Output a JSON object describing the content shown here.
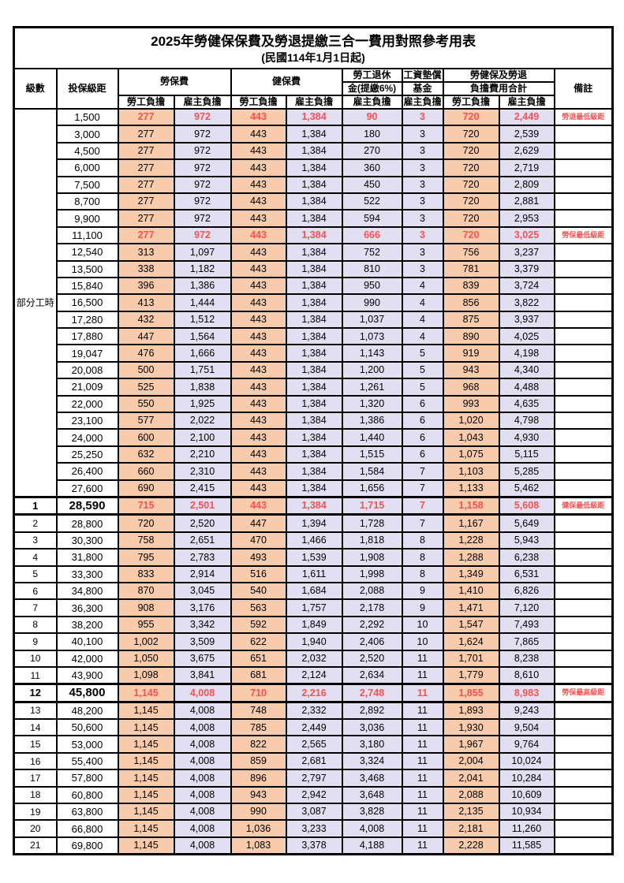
{
  "title": "2025年勞健保保費及勞退提繳三合一費用對照參考用表",
  "subtitle": "(民國114年1月1日起)",
  "colors": {
    "worker_bg": "#F8CBAD",
    "employer_bg": "#E2DFF2",
    "highlight_text": "#FA5050",
    "border": "#000000"
  },
  "header": {
    "level": "級數",
    "bracket": "投保級距",
    "labor_insurance": "勞保費",
    "health_insurance": "健保費",
    "pension_line1": "勞工退休",
    "pension_line2": "金(提繳6%)",
    "wage_fund_line1": "工資墊償",
    "wage_fund_line2": "基金",
    "total_line1": "勞健保及勞退",
    "total_line2": "負擔費用合計",
    "remark": "備註",
    "worker": "勞工負擔",
    "employer": "雇主負擔"
  },
  "table": {
    "part_time_label": "部分工時",
    "row_fields": [
      "level",
      "bracket",
      "labor_fee_worker",
      "labor_fee_employer",
      "health_fee_worker",
      "health_fee_employer",
      "pension_employer",
      "wage_fund_employer",
      "total_worker",
      "total_employer",
      "remark",
      "is_highlight",
      "is_emphasis"
    ],
    "rows": [
      [
        "",
        "1,500",
        "277",
        "972",
        "443",
        "1,384",
        "90",
        "3",
        "720",
        "2,449",
        "勞退最低級距",
        1,
        0
      ],
      [
        "",
        "3,000",
        "277",
        "972",
        "443",
        "1,384",
        "180",
        "3",
        "720",
        "2,539",
        "",
        0,
        0
      ],
      [
        "",
        "4,500",
        "277",
        "972",
        "443",
        "1,384",
        "270",
        "3",
        "720",
        "2,629",
        "",
        0,
        0
      ],
      [
        "",
        "6,000",
        "277",
        "972",
        "443",
        "1,384",
        "360",
        "3",
        "720",
        "2,719",
        "",
        0,
        0
      ],
      [
        "",
        "7,500",
        "277",
        "972",
        "443",
        "1,384",
        "450",
        "3",
        "720",
        "2,809",
        "",
        0,
        0
      ],
      [
        "",
        "8,700",
        "277",
        "972",
        "443",
        "1,384",
        "522",
        "3",
        "720",
        "2,881",
        "",
        0,
        0
      ],
      [
        "",
        "9,900",
        "277",
        "972",
        "443",
        "1,384",
        "594",
        "3",
        "720",
        "2,953",
        "",
        0,
        0
      ],
      [
        "",
        "11,100",
        "277",
        "972",
        "443",
        "1,384",
        "666",
        "3",
        "720",
        "3,025",
        "勞保最低級距",
        1,
        0
      ],
      [
        "",
        "12,540",
        "313",
        "1,097",
        "443",
        "1,384",
        "752",
        "3",
        "756",
        "3,237",
        "",
        0,
        0
      ],
      [
        "",
        "13,500",
        "338",
        "1,182",
        "443",
        "1,384",
        "810",
        "3",
        "781",
        "3,379",
        "",
        0,
        0
      ],
      [
        "",
        "15,840",
        "396",
        "1,386",
        "443",
        "1,384",
        "950",
        "4",
        "839",
        "3,724",
        "",
        0,
        0
      ],
      [
        "",
        "16,500",
        "413",
        "1,444",
        "443",
        "1,384",
        "990",
        "4",
        "856",
        "3,822",
        "",
        0,
        0
      ],
      [
        "",
        "17,280",
        "432",
        "1,512",
        "443",
        "1,384",
        "1,037",
        "4",
        "875",
        "3,937",
        "",
        0,
        0
      ],
      [
        "",
        "17,880",
        "447",
        "1,564",
        "443",
        "1,384",
        "1,073",
        "4",
        "890",
        "4,025",
        "",
        0,
        0
      ],
      [
        "",
        "19,047",
        "476",
        "1,666",
        "443",
        "1,384",
        "1,143",
        "5",
        "919",
        "4,198",
        "",
        0,
        0
      ],
      [
        "",
        "20,008",
        "500",
        "1,751",
        "443",
        "1,384",
        "1,200",
        "5",
        "943",
        "4,340",
        "",
        0,
        0
      ],
      [
        "",
        "21,009",
        "525",
        "1,838",
        "443",
        "1,384",
        "1,261",
        "5",
        "968",
        "4,488",
        "",
        0,
        0
      ],
      [
        "",
        "22,000",
        "550",
        "1,925",
        "443",
        "1,384",
        "1,320",
        "6",
        "993",
        "4,635",
        "",
        0,
        0
      ],
      [
        "",
        "23,100",
        "577",
        "2,022",
        "443",
        "1,384",
        "1,386",
        "6",
        "1,020",
        "4,798",
        "",
        0,
        0
      ],
      [
        "",
        "24,000",
        "600",
        "2,100",
        "443",
        "1,384",
        "1,440",
        "6",
        "1,043",
        "4,930",
        "",
        0,
        0
      ],
      [
        "",
        "25,250",
        "632",
        "2,210",
        "443",
        "1,384",
        "1,515",
        "6",
        "1,075",
        "5,115",
        "",
        0,
        0
      ],
      [
        "",
        "26,400",
        "660",
        "2,310",
        "443",
        "1,384",
        "1,584",
        "7",
        "1,103",
        "5,285",
        "",
        0,
        0
      ],
      [
        "",
        "27,600",
        "690",
        "2,415",
        "443",
        "1,384",
        "1,656",
        "7",
        "1,133",
        "5,462",
        "",
        0,
        0
      ],
      [
        "1",
        "28,590",
        "715",
        "2,501",
        "443",
        "1,384",
        "1,715",
        "7",
        "1,158",
        "5,608",
        "健保最低級距",
        1,
        1
      ],
      [
        "2",
        "28,800",
        "720",
        "2,520",
        "447",
        "1,394",
        "1,728",
        "7",
        "1,167",
        "5,649",
        "",
        0,
        0
      ],
      [
        "3",
        "30,300",
        "758",
        "2,651",
        "470",
        "1,466",
        "1,818",
        "8",
        "1,228",
        "5,943",
        "",
        0,
        0
      ],
      [
        "4",
        "31,800",
        "795",
        "2,783",
        "493",
        "1,539",
        "1,908",
        "8",
        "1,288",
        "6,238",
        "",
        0,
        0
      ],
      [
        "5",
        "33,300",
        "833",
        "2,914",
        "516",
        "1,611",
        "1,998",
        "8",
        "1,349",
        "6,531",
        "",
        0,
        0
      ],
      [
        "6",
        "34,800",
        "870",
        "3,045",
        "540",
        "1,684",
        "2,088",
        "9",
        "1,410",
        "6,826",
        "",
        0,
        0
      ],
      [
        "7",
        "36,300",
        "908",
        "3,176",
        "563",
        "1,757",
        "2,178",
        "9",
        "1,471",
        "7,120",
        "",
        0,
        0
      ],
      [
        "8",
        "38,200",
        "955",
        "3,342",
        "592",
        "1,849",
        "2,292",
        "10",
        "1,547",
        "7,493",
        "",
        0,
        0
      ],
      [
        "9",
        "40,100",
        "1,002",
        "3,509",
        "622",
        "1,940",
        "2,406",
        "10",
        "1,624",
        "7,865",
        "",
        0,
        0
      ],
      [
        "10",
        "42,000",
        "1,050",
        "3,675",
        "651",
        "2,032",
        "2,520",
        "11",
        "1,701",
        "8,238",
        "",
        0,
        0
      ],
      [
        "11",
        "43,900",
        "1,098",
        "3,841",
        "681",
        "2,124",
        "2,634",
        "11",
        "1,779",
        "8,610",
        "",
        0,
        0
      ],
      [
        "12",
        "45,800",
        "1,145",
        "4,008",
        "710",
        "2,216",
        "2,748",
        "11",
        "1,855",
        "8,983",
        "勞保最高級距",
        1,
        1
      ],
      [
        "13",
        "48,200",
        "1,145",
        "4,008",
        "748",
        "2,332",
        "2,892",
        "11",
        "1,893",
        "9,243",
        "",
        0,
        0
      ],
      [
        "14",
        "50,600",
        "1,145",
        "4,008",
        "785",
        "2,449",
        "3,036",
        "11",
        "1,930",
        "9,504",
        "",
        0,
        0
      ],
      [
        "15",
        "53,000",
        "1,145",
        "4,008",
        "822",
        "2,565",
        "3,180",
        "11",
        "1,967",
        "9,764",
        "",
        0,
        0
      ],
      [
        "16",
        "55,400",
        "1,145",
        "4,008",
        "859",
        "2,681",
        "3,324",
        "11",
        "2,004",
        "10,024",
        "",
        0,
        0
      ],
      [
        "17",
        "57,800",
        "1,145",
        "4,008",
        "896",
        "2,797",
        "3,468",
        "11",
        "2,041",
        "10,284",
        "",
        0,
        0
      ],
      [
        "18",
        "60,800",
        "1,145",
        "4,008",
        "943",
        "2,942",
        "3,648",
        "11",
        "2,088",
        "10,609",
        "",
        0,
        0
      ],
      [
        "19",
        "63,800",
        "1,145",
        "4,008",
        "990",
        "3,087",
        "3,828",
        "11",
        "2,135",
        "10,934",
        "",
        0,
        0
      ],
      [
        "20",
        "66,800",
        "1,145",
        "4,008",
        "1,036",
        "3,233",
        "4,008",
        "11",
        "2,181",
        "11,260",
        "",
        0,
        0
      ],
      [
        "21",
        "69,800",
        "1,145",
        "4,008",
        "1,083",
        "3,378",
        "4,188",
        "11",
        "2,228",
        "11,585",
        "",
        0,
        0
      ]
    ]
  }
}
